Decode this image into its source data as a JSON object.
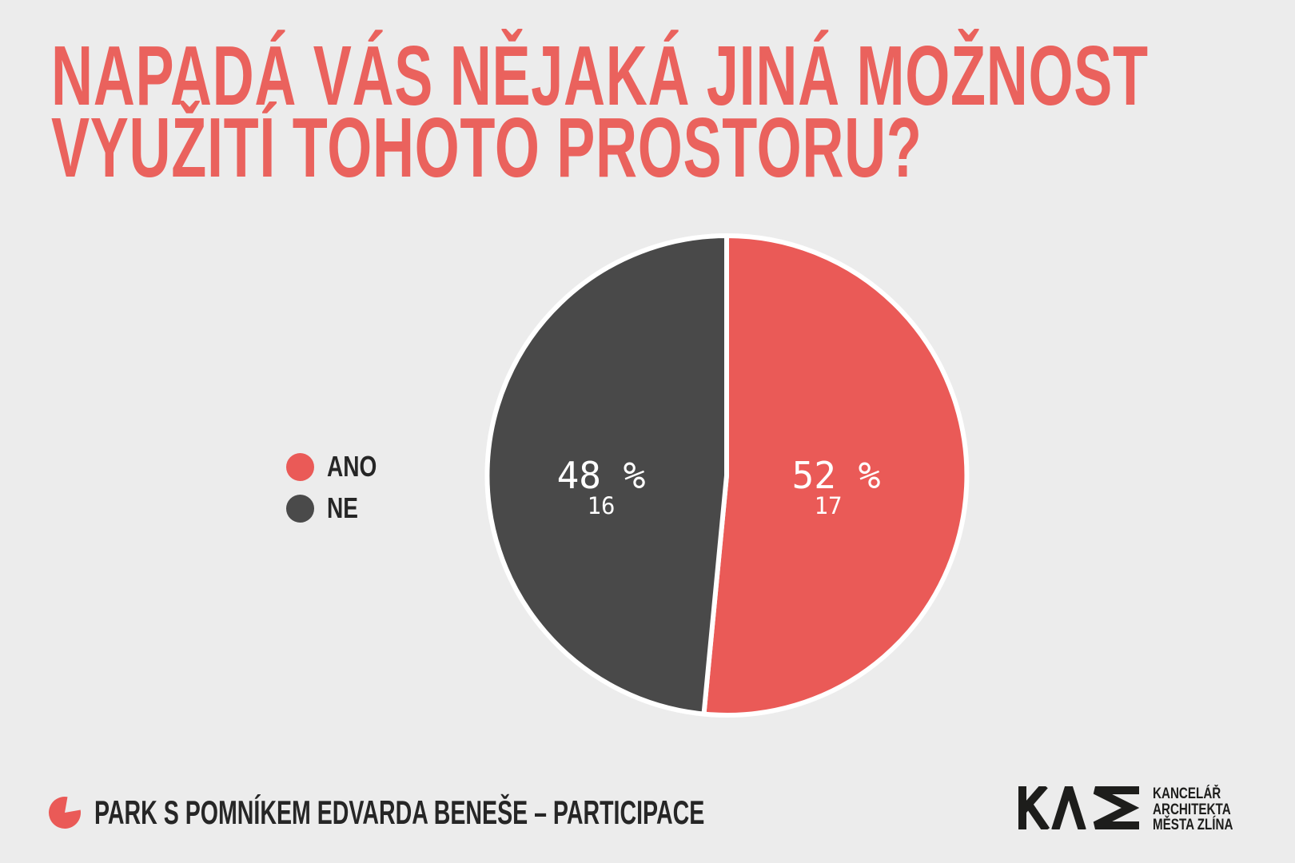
{
  "page": {
    "background": "#ececec"
  },
  "title": {
    "line1": "NAPADÁ VÁS NĚJAKÁ JINÁ MOŽNOST",
    "line2": "VYUŽITÍ TOHOTO PROSTORU?",
    "color": "#ea625d"
  },
  "chart_data": {
    "type": "pie",
    "title": "NAPADÁ VÁS NĚJAKÁ JINÁ MOŽNOST VYUŽITÍ TOHOTO PROSTORU?",
    "start_angle_deg": -90,
    "direction": "clockwise",
    "legend_position": "left",
    "slices": [
      {
        "label": "ANO",
        "value": 17,
        "pct": 52,
        "pct_label": "52 %",
        "count_label": "17",
        "color": "#ea5a57"
      },
      {
        "label": "NE",
        "value": 16,
        "pct": 48,
        "pct_label": "48 %",
        "count_label": "16",
        "color": "#494949"
      }
    ]
  },
  "legend": {
    "items": [
      {
        "label": "ANO",
        "color": "#ea5a57"
      },
      {
        "label": "NE",
        "color": "#4a4a4a"
      }
    ]
  },
  "footer": {
    "label": "PARK S POMNÍKEM EDVARDA BENEŠE – PARTICIPACE",
    "icon_color": "#ea5a57"
  },
  "logo": {
    "mark": "KAM",
    "lines": [
      "KANCELÁŘ",
      "ARCHITEKTA",
      "MĚSTA ZLÍNA"
    ],
    "color": "#1d1d1b"
  }
}
